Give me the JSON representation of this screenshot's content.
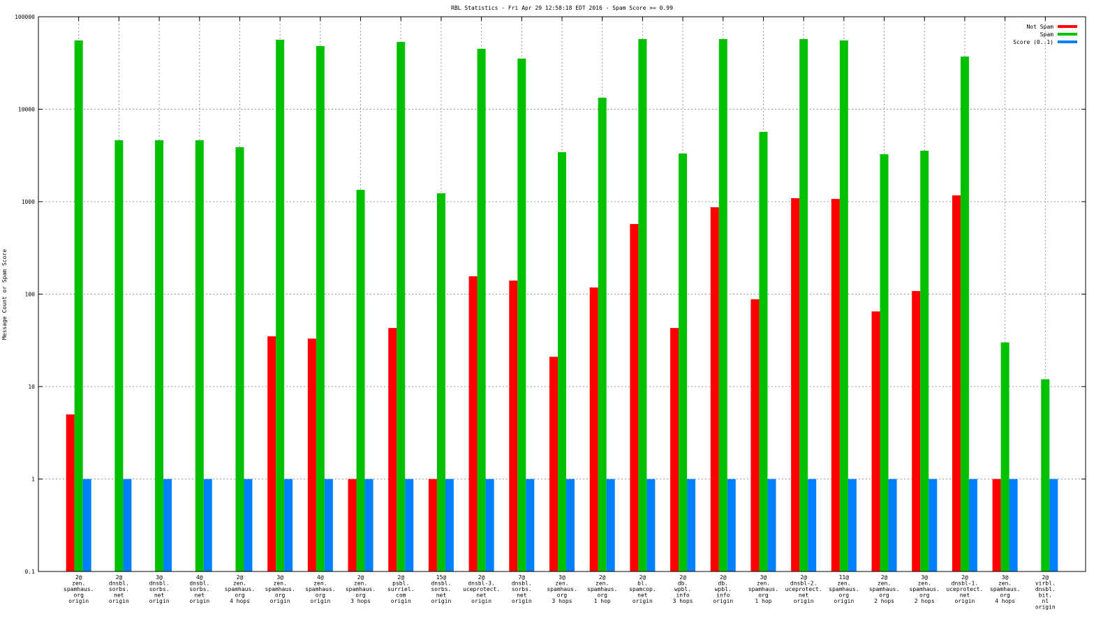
{
  "chart_data": {
    "type": "bar",
    "title": "RBL Statistics - Fri Apr 29 12:58:18 EDT 2016 - Spam Score >= 0.99",
    "xlabel": "",
    "ylabel": "Message Count or Spam Score",
    "yscale": "log",
    "ylim": [
      0.1,
      100000
    ],
    "yticks": [
      "0.1",
      "1",
      "10",
      "100",
      "1000",
      "10000",
      "100000"
    ],
    "grid": true,
    "legend_position": "top-right",
    "categories": [
      [
        "2@",
        "zen.",
        "spamhaus.",
        "org",
        "origin"
      ],
      [
        "2@",
        "dnsbl.",
        "sorbs.",
        "net",
        "origin"
      ],
      [
        "3@",
        "dnsbl.",
        "sorbs.",
        "net",
        "origin"
      ],
      [
        "4@",
        "dnsbl.",
        "sorbs.",
        "net",
        "origin"
      ],
      [
        "2@",
        "zen.",
        "spamhaus.",
        "org",
        "4 hops"
      ],
      [
        "3@",
        "zen.",
        "spamhaus.",
        "org",
        "origin"
      ],
      [
        "4@",
        "zen.",
        "spamhaus.",
        "org",
        "origin"
      ],
      [
        "2@",
        "zen.",
        "spamhaus.",
        "org",
        "3 hops"
      ],
      [
        "2@",
        "psbl.",
        "surriel.",
        "com",
        "origin"
      ],
      [
        "15@",
        "dnsbl.",
        "sorbs.",
        "net",
        "origin"
      ],
      [
        "2@",
        "dnsbl-3.",
        "uceprotect.",
        "net",
        "origin"
      ],
      [
        "7@",
        "dnsbl.",
        "sorbs.",
        "net",
        "origin"
      ],
      [
        "3@",
        "zen.",
        "spamhaus.",
        "org",
        "3 hops"
      ],
      [
        "2@",
        "zen.",
        "spamhaus.",
        "org",
        "1 hop"
      ],
      [
        "2@",
        "bl.",
        "spamcop.",
        "net",
        "origin"
      ],
      [
        "2@",
        "db.",
        "wpbl.",
        "info",
        "3 hops"
      ],
      [
        "2@",
        "db.",
        "wpbl.",
        "info",
        "origin"
      ],
      [
        "3@",
        "zen.",
        "spamhaus.",
        "org",
        "1 hop"
      ],
      [
        "2@",
        "dnsbl-2.",
        "uceprotect.",
        "net",
        "origin"
      ],
      [
        "11@",
        "zen.",
        "spamhaus.",
        "org",
        "origin"
      ],
      [
        "2@",
        "zen.",
        "spamhaus.",
        "org",
        "2 hops"
      ],
      [
        "3@",
        "zen.",
        "spamhaus.",
        "org",
        "2 hops"
      ],
      [
        "2@",
        "dnsbl-1.",
        "uceprotect.",
        "net",
        "origin"
      ],
      [
        "3@",
        "zen.",
        "spamhaus.",
        "org",
        "4 hops"
      ],
      [
        "2@",
        "virbl.",
        "dnsbl.",
        "bit.",
        "nl",
        "origin"
      ]
    ],
    "series": [
      {
        "name": "Not Spam",
        "color": "#ff0000",
        "values": [
          5,
          null,
          null,
          null,
          null,
          35,
          33,
          1,
          43,
          1,
          156,
          140,
          21,
          118,
          573,
          43,
          870,
          88,
          1090,
          1070,
          65,
          108,
          1170,
          1,
          null
        ]
      },
      {
        "name": "Spam",
        "color": "#00c000",
        "values": [
          55400,
          4620,
          4620,
          4620,
          3880,
          56400,
          48200,
          1345,
          53400,
          1232,
          45000,
          35300,
          3430,
          13300,
          57300,
          3320,
          57300,
          5690,
          57300,
          55400,
          3260,
          3560,
          37100,
          30,
          12
        ]
      },
      {
        "name": "Score (0..1)",
        "color": "#0080ff",
        "values": [
          1,
          1,
          1,
          1,
          1,
          1,
          1,
          1,
          1,
          1,
          1,
          1,
          1,
          1,
          1,
          1,
          1,
          1,
          1,
          1,
          1,
          1,
          1,
          1,
          1
        ]
      }
    ]
  }
}
